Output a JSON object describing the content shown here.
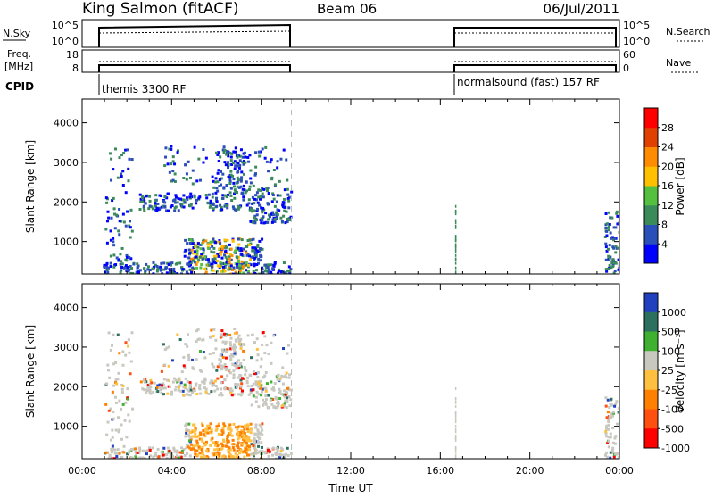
{
  "header": {
    "station": "King Salmon (fitACF)",
    "beam": "Beam 06",
    "date": "06/Jul/2011"
  },
  "nsky_panel": {
    "left_label": "N.Sky",
    "left_ticks": [
      "10^5",
      "10^0"
    ],
    "right_label": "N.Search",
    "right_ticks": [
      "10^5",
      "10^0"
    ]
  },
  "freq_panel": {
    "left_label_1": "Freq.",
    "left_label_2": "[MHz]",
    "left_ticks": [
      "18",
      "8"
    ],
    "right_label": "Nave",
    "right_ticks": [
      "60",
      "0"
    ]
  },
  "cpid": {
    "label": "CPID",
    "modes": [
      {
        "name": "themis 3300 RF",
        "start_hour": 0.85
      },
      {
        "name": "normalsound (fast) 157 RF",
        "start_hour": 16.7
      }
    ]
  },
  "chart_data": [
    {
      "type": "heatmap",
      "name": "power",
      "ylabel": "Slant Range [km]",
      "ylim": [
        180,
        4600
      ],
      "yticks": [
        "1000",
        "2000",
        "3000",
        "4000"
      ],
      "xlim": [
        0,
        24
      ],
      "colorbar": {
        "label": "Power [dB]",
        "ticks": [
          "4",
          "8",
          "12",
          "16",
          "20",
          "24",
          "28"
        ],
        "colors": [
          "#0000ff",
          "#2b4fb8",
          "#3a8a5a",
          "#55c040",
          "#ffc000",
          "#ff8c00",
          "#e04000",
          "#ff0000"
        ]
      },
      "data_spans_hours": [
        [
          0.85,
          9.3
        ],
        [
          16.6,
          16.75
        ],
        [
          23.3,
          24.0
        ]
      ]
    },
    {
      "type": "heatmap",
      "name": "velocity",
      "ylabel": "Slant Range [km]",
      "ylim": [
        180,
        4600
      ],
      "yticks": [
        "1000",
        "2000",
        "3000",
        "4000"
      ],
      "xlim": [
        0,
        24
      ],
      "xticks": [
        "00:00",
        "04:00",
        "08:00",
        "12:00",
        "16:00",
        "20:00",
        "00:00"
      ],
      "xlabel": "Time UT",
      "colorbar": {
        "label": "Velocity [m s⁻¹]",
        "ticks": [
          "1000",
          "500",
          "100",
          "25",
          "-25",
          "-100",
          "-500",
          "-1000"
        ],
        "colors": [
          "#2040c0",
          "#2e7060",
          "#40b030",
          "#c8c8c0",
          "#ffc040",
          "#ff8000",
          "#ff5010",
          "#ff0000"
        ]
      },
      "data_spans_hours": [
        [
          0.85,
          9.3
        ],
        [
          16.6,
          16.75
        ],
        [
          23.3,
          24.0
        ]
      ]
    }
  ]
}
